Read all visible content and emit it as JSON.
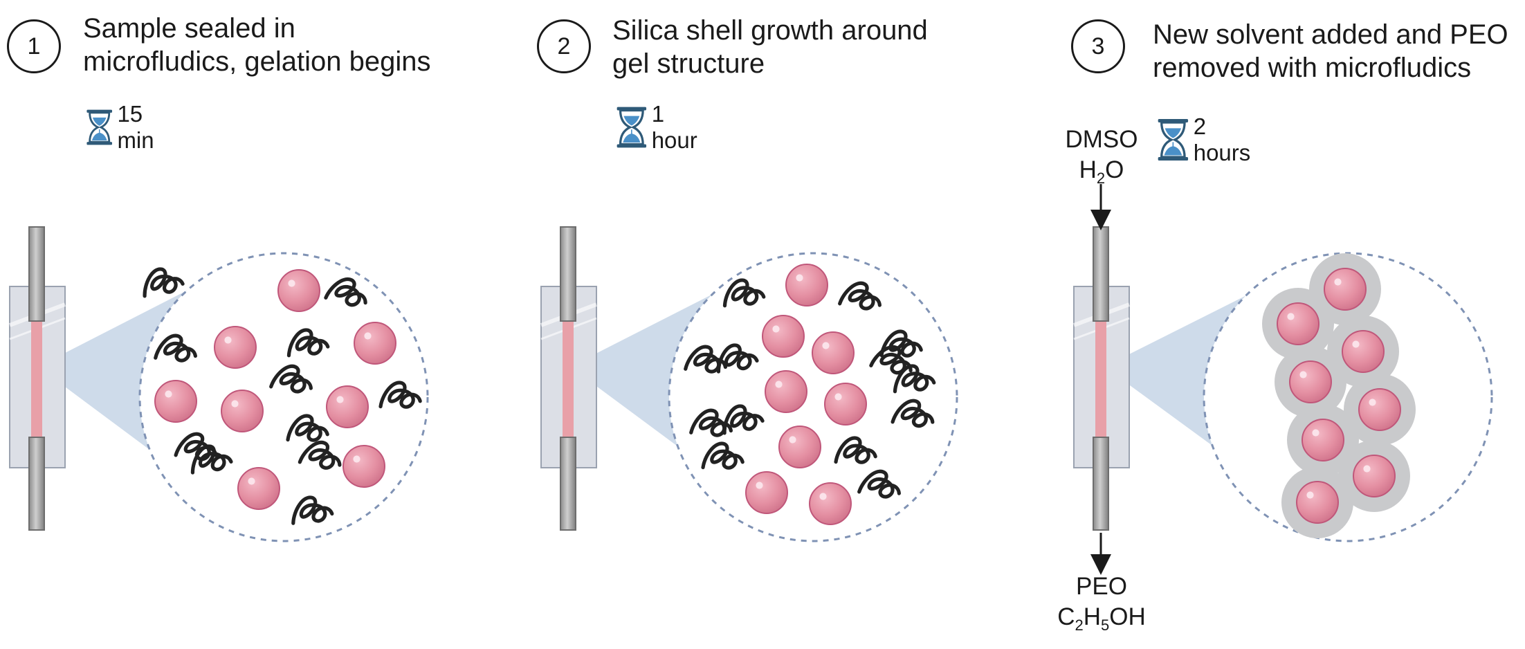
{
  "steps": [
    {
      "number": "1",
      "title_line1": "Sample sealed in",
      "title_line2": "microfludics, gelation begins",
      "timer": "15 min"
    },
    {
      "number": "2",
      "title_line1": "Silica shell growth around",
      "title_line2": "gel structure",
      "timer": "1 hour"
    },
    {
      "number": "3",
      "title_line1": "New solvent added and PEO",
      "title_line2": "removed with microfludics",
      "timer": "2 hours"
    }
  ],
  "inputs": {
    "a": "DMSO",
    "b_main": "H",
    "b_sub": "2",
    "b_tail": "O"
  },
  "outputs": {
    "a": "PEO",
    "b1": "C",
    "b1_sub": "2",
    "b2": "H",
    "b2_sub": "5",
    "b3": "OH"
  },
  "colors": {
    "particle": "#e48fa2",
    "particle_edge": "#c0577a",
    "polymer": "#222222",
    "shell": "#c9cacc",
    "magnify": "#c5d5e6",
    "circle_outline": "#7f92b4",
    "hourglass": "#2f5a78",
    "sand": "#4a90c8"
  }
}
